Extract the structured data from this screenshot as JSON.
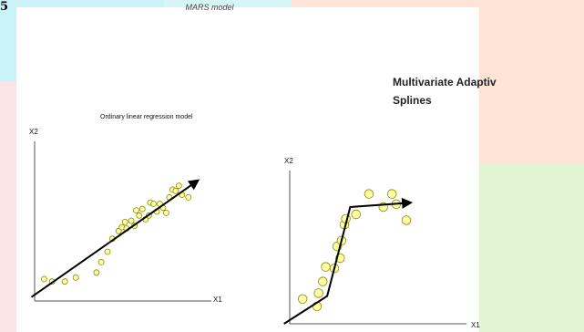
{
  "page": {
    "corner_label": "5",
    "title": "MARS model",
    "heading_line1": "Multivariate Adaptiv",
    "heading_line2": "Splines"
  },
  "colors": {
    "point_fill": "#ffffa8",
    "point_stroke": "#8a8a00",
    "bg_cyan": "#c9f3f6",
    "bg_peach": "#fde4d6",
    "bg_green": "#e3f4d3",
    "bg_pink": "#fde5e6"
  },
  "chart_data": [
    {
      "type": "scatter",
      "title": "Ordinary linear regression model",
      "xlabel": "X1",
      "ylabel": "X2",
      "xlim": [
        0,
        100
      ],
      "ylim": [
        0,
        100
      ],
      "points": [
        [
          6,
          17
        ],
        [
          11,
          15
        ],
        [
          19,
          15
        ],
        [
          26,
          18
        ],
        [
          39,
          22
        ],
        [
          42,
          30
        ],
        [
          46,
          38
        ],
        [
          49,
          48
        ],
        [
          53,
          54
        ],
        [
          55,
          57
        ],
        [
          58,
          56
        ],
        [
          61,
          62
        ],
        [
          63,
          58
        ],
        [
          66,
          66
        ],
        [
          68,
          71
        ],
        [
          70,
          63
        ],
        [
          72,
          66
        ],
        [
          73,
          76
        ],
        [
          75,
          75
        ],
        [
          77,
          69
        ],
        [
          79,
          75
        ],
        [
          81,
          72
        ],
        [
          83,
          68
        ],
        [
          85,
          80
        ],
        [
          87,
          86
        ],
        [
          89,
          85
        ],
        [
          91,
          89
        ],
        [
          93,
          82
        ],
        [
          97,
          80
        ],
        [
          57,
          61
        ],
        [
          64,
          70
        ]
      ],
      "fit_line": [
        [
          -2,
          3
        ],
        [
          103,
          93
        ]
      ]
    },
    {
      "type": "line",
      "title": "",
      "xlabel": "X1",
      "ylabel": "X2",
      "xlim": [
        0,
        100
      ],
      "ylim": [
        0,
        100
      ],
      "points": [
        [
          9,
          17
        ],
        [
          19,
          12
        ],
        [
          20,
          21
        ],
        [
          23,
          29
        ],
        [
          25,
          39
        ],
        [
          31,
          38
        ],
        [
          33,
          53
        ],
        [
          35,
          45
        ],
        [
          36,
          57
        ],
        [
          38,
          68
        ],
        [
          39,
          72
        ],
        [
          46,
          75
        ],
        [
          55,
          89
        ],
        [
          65,
          80
        ],
        [
          71,
          89
        ],
        [
          74,
          82
        ],
        [
          81,
          71
        ]
      ],
      "spline": [
        [
          -4,
          0
        ],
        [
          26,
          19
        ],
        [
          42,
          80
        ],
        [
          84,
          83
        ]
      ]
    }
  ]
}
